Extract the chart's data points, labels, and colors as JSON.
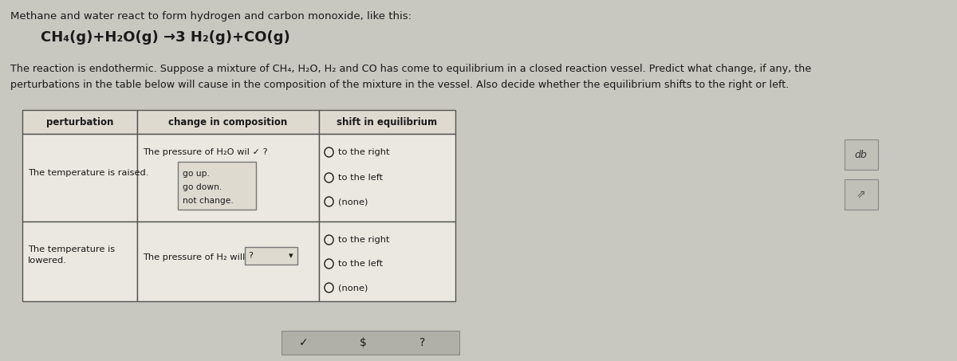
{
  "bg_color": "#c8c7c0",
  "title_line1": "Methane and water react to form hydrogen and carbon monoxide, like this:",
  "equation": "CH₄(g)+H₂O(g) →3 H₂(g)+CO(g)",
  "body_text_line1": "The reaction is endothermic. Suppose a mixture of CH₄, H₂O, H₂ and CO has come to equilibrium in a closed reaction vessel. Predict what change, if any, the",
  "body_text_line2": "perturbations in the table below will cause in the composition of the mixture in the vessel. Also decide whether the equilibrium shifts to the right or left.",
  "table_headers": [
    "perturbation",
    "change in composition",
    "shift in equilibrium"
  ],
  "row1_col1": "The temperature is raised.",
  "row1_col2_main": "The pressure of H₂O wil ✓ ?",
  "row1_col2_dropdown": [
    "go up.",
    "go down.",
    "not change."
  ],
  "row1_col3": [
    "to the right",
    "to the left",
    "(none)"
  ],
  "row2_col1_line1": "The temperature is",
  "row2_col1_line2": "lowered.",
  "row2_col2_main": "The pressure of H₂ will",
  "row2_col3": [
    "to the right",
    "to the left",
    "(none)"
  ],
  "text_color": "#1a1a1a",
  "table_header_bg": "#dedad0",
  "table_cell_bg": "#eae8e0",
  "table_border_color": "#555555",
  "dropdown_bg": "#dedad0",
  "dropdown_border": "#777777",
  "font_size_title": 9.5,
  "font_size_body": 9.2,
  "font_size_equation": 13.0,
  "font_size_table_header": 8.5,
  "font_size_table_cell": 8.2
}
